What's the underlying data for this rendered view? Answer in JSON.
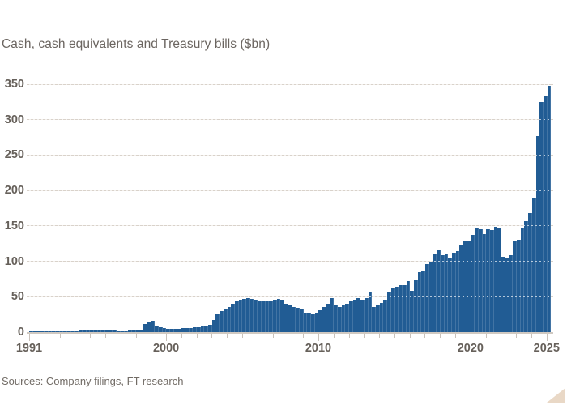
{
  "title": "Cash, cash equivalents and Treasury bills ($bn)",
  "source_line": "Sources: Company filings, FT research",
  "colors": {
    "bar": "#215c94",
    "gridline": "#d9d2ca",
    "axis_text": "#66605a",
    "title_text": "#6b6560",
    "source_text": "#716b65",
    "corner_triangle": "#e9d8c6",
    "background": "#ffffff"
  },
  "chart_data": {
    "type": "bar",
    "title": "Cash, cash equivalents and Treasury bills ($bn)",
    "frequency": "quarterly",
    "x_start": "1991-Q1",
    "x_end": "2025-Q1",
    "ylim": [
      0,
      350
    ],
    "yticks": [
      0,
      50,
      100,
      150,
      200,
      250,
      300,
      350
    ],
    "x_axis": {
      "start_year": 1991,
      "end_year": 2025,
      "labeled_ticks": [
        1991,
        2000,
        2010,
        2020,
        2025
      ],
      "minor_tick_every_year": true
    },
    "grid": "horizontal",
    "legend": "none",
    "values": [
      0.8,
      0.9,
      1.0,
      1.1,
      1.2,
      1.1,
      1.0,
      1.2,
      1.3,
      1.2,
      1.1,
      1.3,
      1.5,
      2.2,
      2.8,
      2.5,
      2.2,
      2.7,
      3.1,
      2.9,
      2.5,
      2.1,
      1.9,
      1.7,
      1.5,
      1.7,
      1.9,
      2.0,
      2.2,
      3.5,
      11.0,
      15.0,
      15.8,
      8.5,
      6.5,
      5.5,
      5.0,
      4.4,
      4.2,
      4.6,
      5.2,
      5.6,
      6.2,
      6.6,
      7.2,
      7.8,
      8.6,
      10.5,
      17.0,
      25.0,
      30.0,
      33.0,
      36.0,
      40.0,
      43.0,
      45.5,
      46.5,
      47.5,
      47.0,
      46.0,
      45.0,
      43.5,
      43.0,
      44.0,
      45.5,
      47.0,
      45.5,
      40.5,
      38.5,
      35.5,
      34.5,
      32.5,
      27.5,
      26.0,
      25.5,
      28.0,
      31.0,
      35.0,
      40.0,
      48.0,
      38.0,
      36.0,
      38.0,
      40.5,
      43.5,
      45.5,
      47.5,
      45.5,
      48.0,
      57.0,
      35.5,
      38.0,
      41.5,
      46.0,
      55.5,
      62.5,
      63.5,
      66.5,
      66.5,
      71.7,
      58.3,
      72.7,
      84.8,
      86.4,
      96.5,
      99.7,
      109.3,
      116.0,
      108.6,
      111.1,
      103.6,
      111.9,
      114.2,
      122.4,
      128.2,
      128.0,
      137.3,
      146.6,
      145.7,
      138.3,
      145.4,
      144.1,
      149.2,
      146.7,
      106.3,
      105.4,
      109.0,
      128.6,
      130.6,
      147.4,
      157.2,
      167.6,
      189.0,
      276.9,
      325.2,
      334.2,
      347.7
    ]
  }
}
